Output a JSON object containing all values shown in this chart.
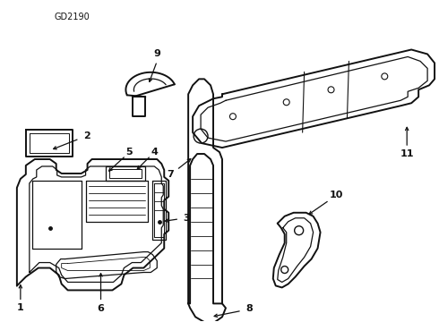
{
  "title": "GD2190",
  "background_color": "#ffffff",
  "line_color": "#111111",
  "label_color": "#111111",
  "figsize": [
    4.9,
    3.6
  ],
  "dpi": 100
}
